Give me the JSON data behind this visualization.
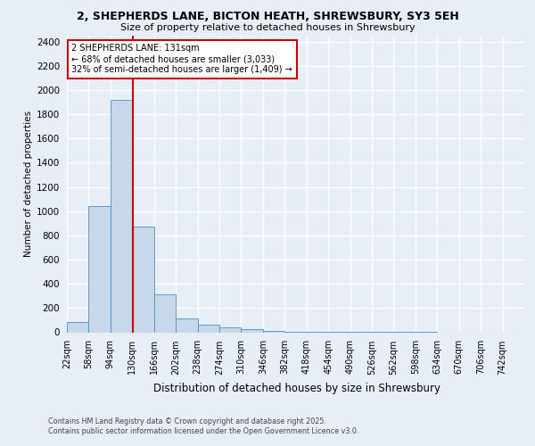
{
  "title1": "2, SHEPHERDS LANE, BICTON HEATH, SHREWSBURY, SY3 5EH",
  "title2": "Size of property relative to detached houses in Shrewsbury",
  "xlabel": "Distribution of detached houses by size in Shrewsbury",
  "ylabel": "Number of detached properties",
  "bin_labels": [
    "22sqm",
    "58sqm",
    "94sqm",
    "130sqm",
    "166sqm",
    "202sqm",
    "238sqm",
    "274sqm",
    "310sqm",
    "346sqm",
    "382sqm",
    "418sqm",
    "454sqm",
    "490sqm",
    "526sqm",
    "562sqm",
    "598sqm",
    "634sqm",
    "670sqm",
    "706sqm",
    "742sqm"
  ],
  "bin_edges": [
    22,
    58,
    94,
    130,
    166,
    202,
    238,
    274,
    310,
    346,
    382,
    418,
    454,
    490,
    526,
    562,
    598,
    634,
    670,
    706,
    742
  ],
  "bar_heights": [
    85,
    1040,
    1920,
    870,
    310,
    115,
    60,
    40,
    25,
    10,
    5,
    3,
    2,
    2,
    1,
    1,
    1,
    0,
    0,
    0
  ],
  "bar_color": "#c8d8eb",
  "bar_edge_color": "#4a90c4",
  "property_size": 131,
  "vline_color": "#cc0000",
  "annotation_text": "2 SHEPHERDS LANE: 131sqm\n← 68% of detached houses are smaller (3,033)\n32% of semi-detached houses are larger (1,409) →",
  "annotation_box_color": "#cc0000",
  "ylim": [
    0,
    2450
  ],
  "yticks": [
    0,
    200,
    400,
    600,
    800,
    1000,
    1200,
    1400,
    1600,
    1800,
    2000,
    2200,
    2400
  ],
  "bg_color": "#e8eef6",
  "plot_bg_color": "#e8eef6",
  "grid_color": "#ffffff",
  "footnote": "Contains HM Land Registry data © Crown copyright and database right 2025.\nContains public sector information licensed under the Open Government Licence v3.0."
}
